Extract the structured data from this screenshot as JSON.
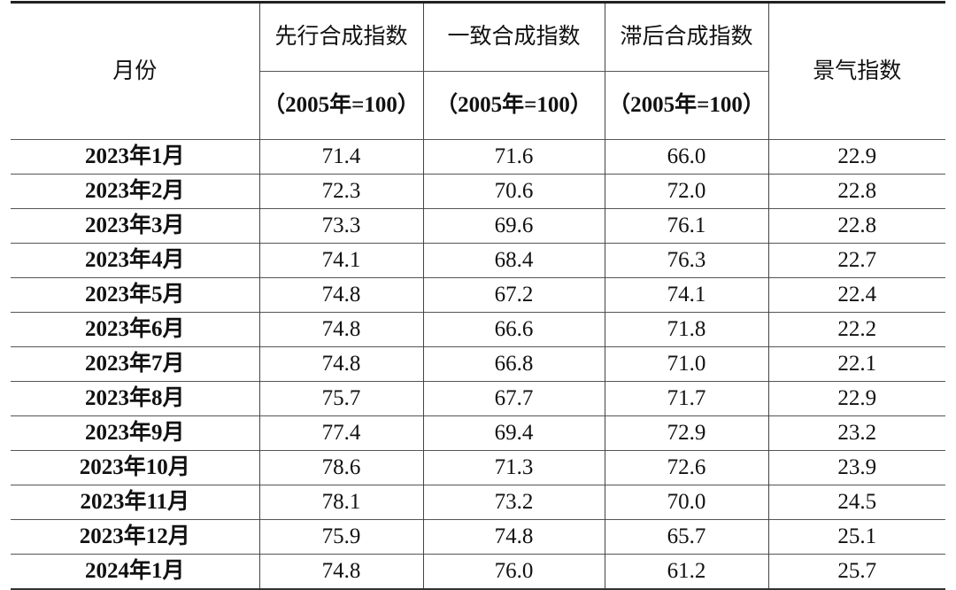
{
  "table": {
    "headers": {
      "month": "月份",
      "leading_title": "先行合成指数",
      "coincident_title": "一致合成指数",
      "lagging_title": "滞后合成指数",
      "unit": "（2005年=100）",
      "sentiment": "景气指数"
    },
    "rows": [
      {
        "month": "2023年1月",
        "leading": "71.4",
        "coincident": "71.6",
        "lagging": "66.0",
        "sentiment": "22.9"
      },
      {
        "month": "2023年2月",
        "leading": "72.3",
        "coincident": "70.6",
        "lagging": "72.0",
        "sentiment": "22.8"
      },
      {
        "month": "2023年3月",
        "leading": "73.3",
        "coincident": "69.6",
        "lagging": "76.1",
        "sentiment": "22.8"
      },
      {
        "month": "2023年4月",
        "leading": "74.1",
        "coincident": "68.4",
        "lagging": "76.3",
        "sentiment": "22.7"
      },
      {
        "month": "2023年5月",
        "leading": "74.8",
        "coincident": "67.2",
        "lagging": "74.1",
        "sentiment": "22.4"
      },
      {
        "month": "2023年6月",
        "leading": "74.8",
        "coincident": "66.6",
        "lagging": "71.8",
        "sentiment": "22.2"
      },
      {
        "month": "2023年7月",
        "leading": "74.8",
        "coincident": "66.8",
        "lagging": "71.0",
        "sentiment": "22.1"
      },
      {
        "month": "2023年8月",
        "leading": "75.7",
        "coincident": "67.7",
        "lagging": "71.7",
        "sentiment": "22.9"
      },
      {
        "month": "2023年9月",
        "leading": "77.4",
        "coincident": "69.4",
        "lagging": "72.9",
        "sentiment": "23.2"
      },
      {
        "month": "2023年10月",
        "leading": "78.6",
        "coincident": "71.3",
        "lagging": "72.6",
        "sentiment": "23.9"
      },
      {
        "month": "2023年11月",
        "leading": "78.1",
        "coincident": "73.2",
        "lagging": "70.0",
        "sentiment": "24.5"
      },
      {
        "month": "2023年12月",
        "leading": "75.9",
        "coincident": "74.8",
        "lagging": "65.7",
        "sentiment": "25.1"
      },
      {
        "month": "2024年1月",
        "leading": "74.8",
        "coincident": "76.0",
        "lagging": "61.2",
        "sentiment": "25.7"
      }
    ]
  }
}
